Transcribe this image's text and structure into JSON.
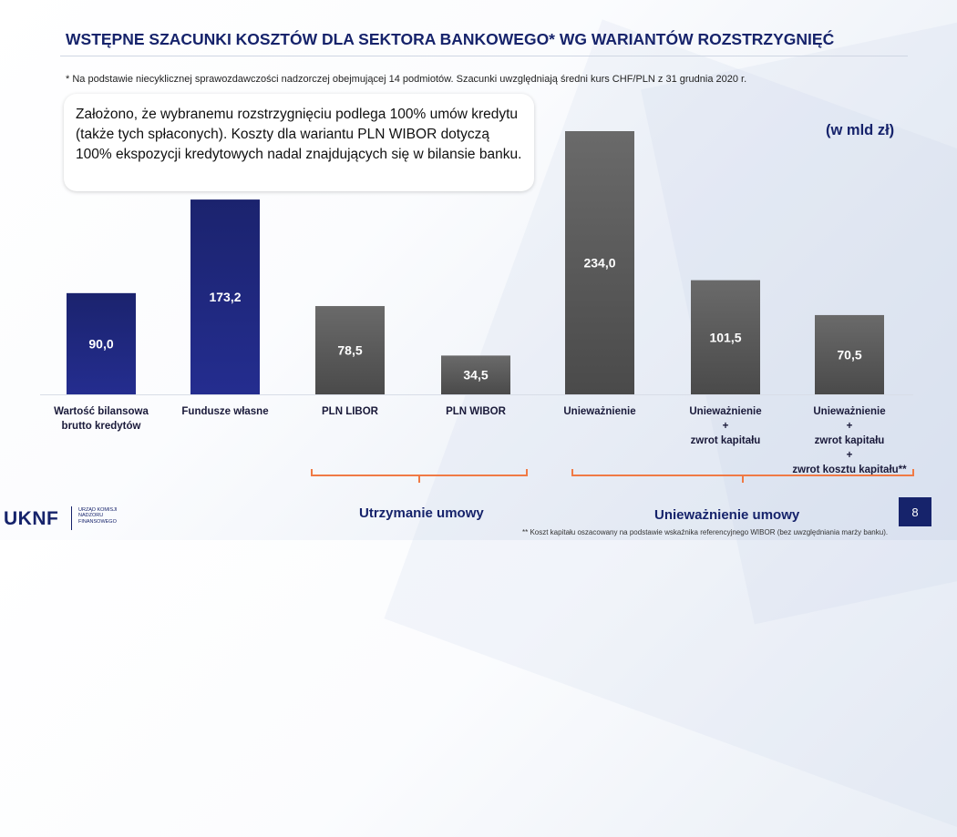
{
  "title": "WSTĘPNE SZACUNKI KOSZTÓW DLA SEKTORA BANKOWEGO* WG WARIANTÓW ROZSTRZYGNIĘĆ",
  "footnote_top": "* Na podstawie niecyklicznej sprawozdawczości nadzorczej obejmującej 14 podmiotów. Szacunki uwzględniają średni kurs CHF/PLN z 31 grudnia 2020 r.",
  "callout": "Założono, że wybranemu rozstrzygnięciu podlega 100% umów kredytu (także tych spłaconych). Koszty dla wariantu PLN WIBOR dotyczą 100% ekspozycji kredytowych nadal znajdujących się w bilansie banku.",
  "unit_label": "(w mld zł)",
  "chart_data": {
    "type": "bar",
    "categories": [
      "Wartość bilansowa brutto kredytów",
      "Fundusze własne",
      "PLN LIBOR",
      "PLN WIBOR",
      "Unieważnienie",
      "Unieważnienie + zwrot kapitału",
      "Unieważnienie + zwrot kapitału + zwrot kosztu kapitału**"
    ],
    "category_lines": [
      [
        "Wartość bilansowa",
        "brutto kredytów"
      ],
      [
        "Fundusze własne"
      ],
      [
        "PLN LIBOR"
      ],
      [
        "PLN WIBOR"
      ],
      [
        "Unieważnienie"
      ],
      [
        "Unieważnienie",
        "+",
        "zwrot kapitału"
      ],
      [
        "Unieważnienie",
        "+",
        "zwrot kapitału",
        "+",
        "zwrot kosztu kapitału**"
      ]
    ],
    "values": [
      90.0,
      173.2,
      78.5,
      34.5,
      234.0,
      101.5,
      70.5
    ],
    "value_labels": [
      "90,0",
      "173,2",
      "78,5",
      "34,5",
      "234,0",
      "101,5",
      "70,5"
    ],
    "groups": [
      {
        "label": "Utrzymanie umowy",
        "from": 2,
        "to": 3
      },
      {
        "label": "Unieważnienie umowy",
        "from": 4,
        "to": 6
      }
    ],
    "colors": {
      "reference": "#1b236e",
      "reference_light": "#242d8f",
      "scenario": "#6a6a6a",
      "scenario_light": "#4a4a4a",
      "bracket": "#f07a45"
    },
    "ylim": [
      0,
      234.0
    ]
  },
  "logo": {
    "name": "UKNF",
    "subtitle": "URZĄD KOMISJI NADZORU FINANSOWEGO"
  },
  "page_number": "8",
  "footnote_bottom": "** Koszt kapitału oszacowany na podstawie wskaźnika referencyjnego WIBOR (bez uwzględniania marży banku)."
}
